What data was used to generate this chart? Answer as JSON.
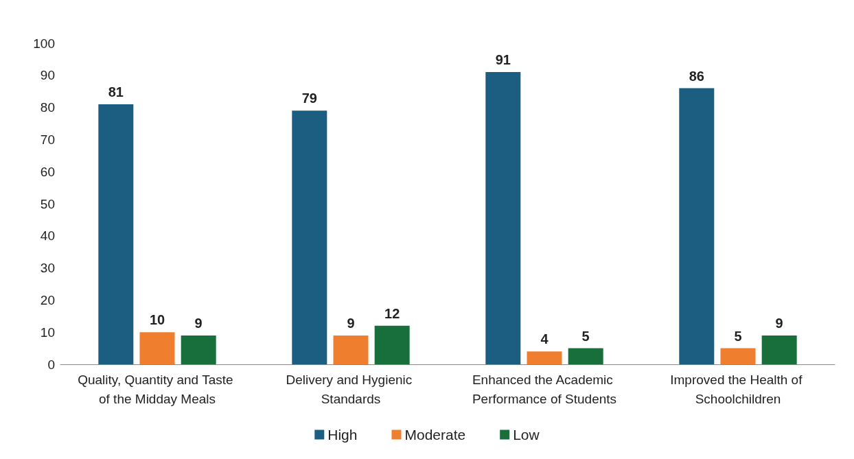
{
  "chart_data": {
    "type": "bar",
    "categories": [
      "Quality, Quantity and Taste of the Midday Meals",
      "Delivery and Hygienic Standards",
      "Enhanced the Academic Performance of Students",
      "Improved the Health of Schoolchildren"
    ],
    "series": [
      {
        "name": "High",
        "color": "#1b5e82",
        "values": [
          81,
          79,
          91,
          86
        ]
      },
      {
        "name": "Moderate",
        "color": "#ef7f2f",
        "values": [
          10,
          9,
          4,
          5
        ]
      },
      {
        "name": "Low",
        "color": "#186f3b",
        "values": [
          9,
          12,
          5,
          9
        ]
      }
    ],
    "ylim": [
      0,
      100
    ],
    "yticks": [
      0,
      10,
      20,
      30,
      40,
      50,
      60,
      70,
      80,
      90,
      100
    ],
    "grid": false,
    "legend": "bottom",
    "data_labels": true
  }
}
